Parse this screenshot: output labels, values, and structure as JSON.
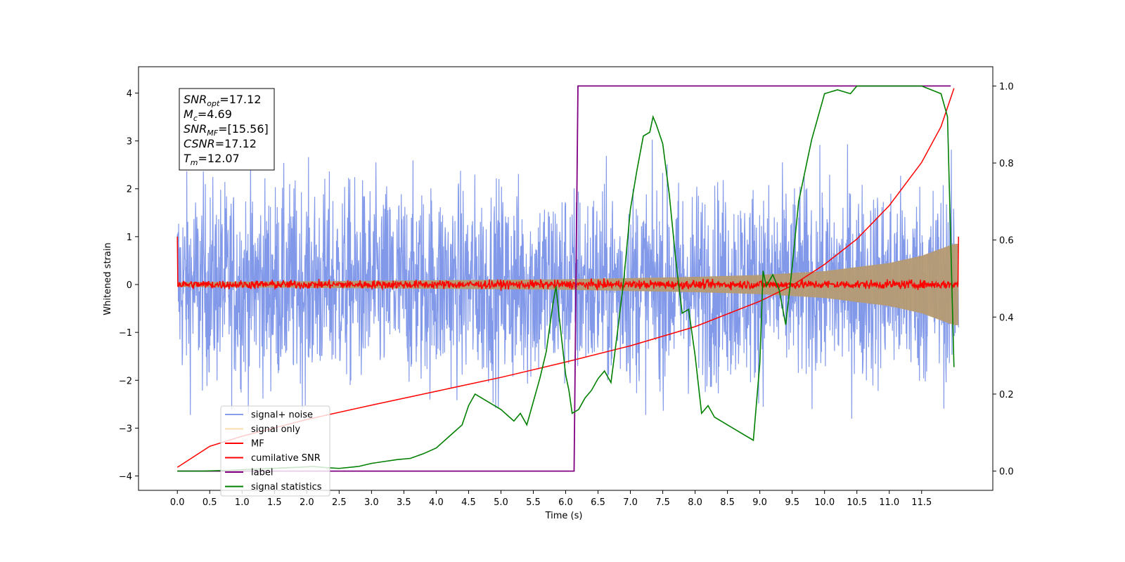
{
  "chart_data": {
    "type": "line",
    "xlabel": "Time (s)",
    "ylabel": "Whitened strain",
    "xlim": [
      -0.6,
      12.6
    ],
    "ylim": [
      -4.3,
      4.55
    ],
    "y2lim": [
      -0.05,
      1.05
    ],
    "grid": false,
    "legend_placement": "lower left",
    "x_ticks": [
      "0.0",
      "0.5",
      "1.0",
      "1.5",
      "2.0",
      "2.5",
      "3.0",
      "3.5",
      "4.0",
      "4.5",
      "5.0",
      "5.5",
      "6.0",
      "6.5",
      "7.0",
      "7.5",
      "8.0",
      "8.5",
      "9.0",
      "9.5",
      "10.0",
      "10.5",
      "11.0",
      "11.5"
    ],
    "y_ticks": [
      "−4",
      "−3",
      "−2",
      "−1",
      "0",
      "1",
      "2",
      "3",
      "4"
    ],
    "y2_ticks": [
      "0.0",
      "0.2",
      "0.4",
      "0.6",
      "0.8",
      "1.0"
    ],
    "annotation": {
      "lines": [
        {
          "base": "SNR",
          "sub": "opt",
          "rest": "=17.12"
        },
        {
          "base": "M",
          "sub": "c",
          "rest": "=4.69"
        },
        {
          "base": "SNR",
          "sub": "MF",
          "rest": "=[15.56]"
        },
        {
          "base": "CSNR",
          "sub": "",
          "rest": "=17.12"
        },
        {
          "base": "T",
          "sub": "m",
          "rest": "=12.07"
        }
      ]
    },
    "series": [
      {
        "name": "signal+ noise",
        "color": "#7b93e8",
        "axis": "left",
        "description": "noisy whitened strain, range approx -3.9 to 4.2"
      },
      {
        "name": "signal only",
        "color": "#f5c77a",
        "axis": "left",
        "envelope_amplitude": {
          "t": [
            0,
            2,
            4,
            6,
            8,
            9,
            10,
            11,
            11.5,
            12.0
          ],
          "a": [
            0.05,
            0.07,
            0.09,
            0.11,
            0.16,
            0.2,
            0.28,
            0.45,
            0.6,
            0.85
          ]
        }
      },
      {
        "name": "MF",
        "color": "#ff0000",
        "axis": "left",
        "description": "matched filter output around 0, noise ~0.1, spike to 1.0 at both ends"
      },
      {
        "name": "cumilative SNR",
        "color": "#ff0000",
        "axis": "left",
        "x": [
          0.0,
          0.5,
          1,
          2,
          3,
          4,
          5,
          6,
          7,
          8,
          9,
          9.5,
          10,
          10.5,
          11,
          11.5,
          11.8,
          12.0
        ],
        "y": [
          -3.82,
          -3.38,
          -3.17,
          -2.82,
          -2.52,
          -2.23,
          -1.94,
          -1.62,
          -1.28,
          -0.88,
          -0.35,
          -0.02,
          0.42,
          0.95,
          1.65,
          2.55,
          3.3,
          4.1
        ]
      },
      {
        "name": "label",
        "color": "#800080",
        "axis": "right",
        "x": [
          0.0,
          6.13,
          6.19,
          11.95
        ],
        "y": [
          0.0,
          0.0,
          1.0,
          1.0
        ]
      },
      {
        "name": "signal statistics",
        "color": "#008000",
        "axis": "right",
        "x": [
          0.0,
          0.4,
          0.8,
          1.2,
          1.6,
          1.9,
          2.1,
          2.3,
          2.5,
          2.8,
          3.0,
          3.2,
          3.4,
          3.6,
          3.8,
          4.0,
          4.2,
          4.4,
          4.5,
          4.6,
          4.8,
          5.0,
          5.2,
          5.3,
          5.4,
          5.5,
          5.6,
          5.7,
          5.8,
          5.85,
          5.9,
          6.0,
          6.05,
          6.1,
          6.2,
          6.3,
          6.4,
          6.5,
          6.6,
          6.7,
          6.8,
          6.9,
          7.0,
          7.1,
          7.2,
          7.3,
          7.35,
          7.4,
          7.5,
          7.6,
          7.7,
          7.8,
          7.9,
          8.0,
          8.1,
          8.2,
          8.3,
          8.5,
          8.7,
          8.9,
          9.0,
          9.05,
          9.1,
          9.2,
          9.3,
          9.4,
          9.5,
          9.6,
          9.8,
          10.0,
          10.2,
          10.4,
          10.5,
          10.6,
          10.8,
          11.0,
          11.2,
          11.5,
          11.8,
          11.9,
          12.0
        ],
        "y": [
          0.0,
          0.0,
          0.002,
          0.005,
          0.008,
          0.01,
          0.012,
          0.009,
          0.007,
          0.012,
          0.02,
          0.025,
          0.03,
          0.033,
          0.045,
          0.06,
          0.09,
          0.12,
          0.17,
          0.2,
          0.18,
          0.16,
          0.13,
          0.15,
          0.12,
          0.18,
          0.24,
          0.31,
          0.43,
          0.48,
          0.4,
          0.25,
          0.21,
          0.15,
          0.16,
          0.19,
          0.21,
          0.24,
          0.26,
          0.23,
          0.36,
          0.5,
          0.68,
          0.78,
          0.87,
          0.88,
          0.92,
          0.9,
          0.85,
          0.72,
          0.55,
          0.41,
          0.42,
          0.3,
          0.15,
          0.17,
          0.14,
          0.12,
          0.1,
          0.08,
          0.28,
          0.52,
          0.48,
          0.51,
          0.47,
          0.38,
          0.53,
          0.7,
          0.86,
          0.98,
          0.99,
          0.98,
          1.0,
          1.0,
          1.0,
          1.0,
          1.0,
          1.0,
          0.98,
          0.92,
          0.27
        ]
      }
    ]
  }
}
